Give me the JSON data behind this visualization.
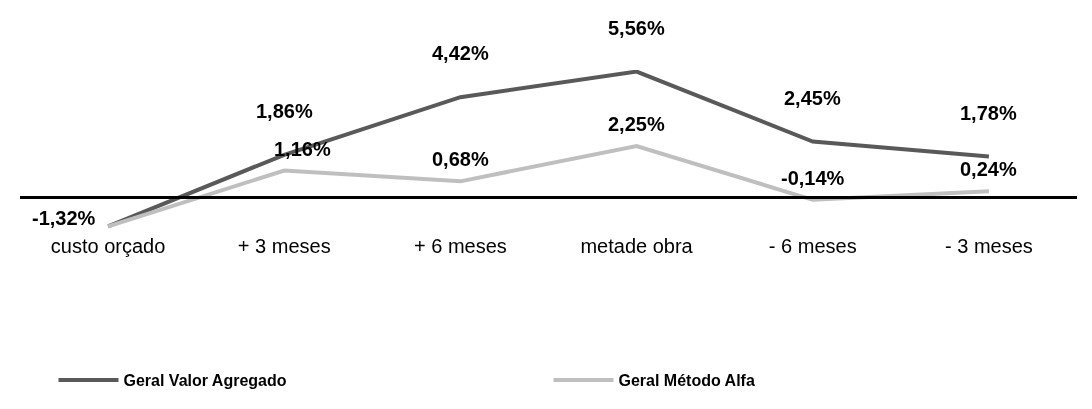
{
  "chart_data": {
    "type": "line",
    "categories": [
      "custo orçado",
      "+ 3 meses",
      "+ 6 meses",
      "metade obra",
      "- 6 meses",
      "- 3 meses"
    ],
    "series": [
      {
        "name": "Geral Valor Agregado",
        "color": "#595959",
        "values": [
          -1.32,
          1.86,
          4.42,
          5.56,
          2.45,
          1.78
        ],
        "value_labels": [
          "-1,32%",
          "1,86%",
          "4,42%",
          "5,56%",
          "2,45%",
          "1,78%"
        ]
      },
      {
        "name": "Geral Método Alfa",
        "color": "#bfbfbf",
        "values": [
          -1.32,
          1.16,
          0.68,
          2.25,
          -0.14,
          0.24
        ],
        "value_labels": [
          null,
          "1,16%",
          "0,68%",
          "2,25%",
          "-0,14%",
          "0,24%"
        ]
      }
    ],
    "legend": "bottom",
    "grid": false,
    "marker": "none",
    "line_style": "solid"
  }
}
